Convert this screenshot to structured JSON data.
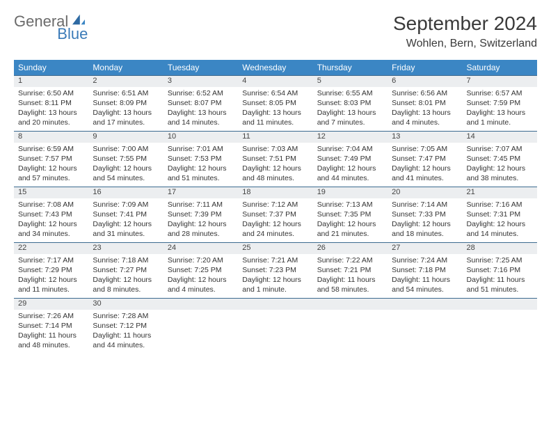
{
  "brand": {
    "part1": "General",
    "part2": "Blue"
  },
  "title": "September 2024",
  "location": "Wohlen, Bern, Switzerland",
  "colors": {
    "header_bg": "#3b86c4",
    "header_text": "#ffffff",
    "daynum_bg": "#eceef0",
    "border": "#3b6a8f",
    "brand_blue": "#3b7bb8",
    "brand_gray": "#6b6b6b",
    "text": "#333333",
    "background": "#ffffff"
  },
  "weekdays": [
    "Sunday",
    "Monday",
    "Tuesday",
    "Wednesday",
    "Thursday",
    "Friday",
    "Saturday"
  ],
  "weeks": [
    [
      {
        "day": "1",
        "sunrise": "Sunrise: 6:50 AM",
        "sunset": "Sunset: 8:11 PM",
        "daylight": "Daylight: 13 hours and 20 minutes."
      },
      {
        "day": "2",
        "sunrise": "Sunrise: 6:51 AM",
        "sunset": "Sunset: 8:09 PM",
        "daylight": "Daylight: 13 hours and 17 minutes."
      },
      {
        "day": "3",
        "sunrise": "Sunrise: 6:52 AM",
        "sunset": "Sunset: 8:07 PM",
        "daylight": "Daylight: 13 hours and 14 minutes."
      },
      {
        "day": "4",
        "sunrise": "Sunrise: 6:54 AM",
        "sunset": "Sunset: 8:05 PM",
        "daylight": "Daylight: 13 hours and 11 minutes."
      },
      {
        "day": "5",
        "sunrise": "Sunrise: 6:55 AM",
        "sunset": "Sunset: 8:03 PM",
        "daylight": "Daylight: 13 hours and 7 minutes."
      },
      {
        "day": "6",
        "sunrise": "Sunrise: 6:56 AM",
        "sunset": "Sunset: 8:01 PM",
        "daylight": "Daylight: 13 hours and 4 minutes."
      },
      {
        "day": "7",
        "sunrise": "Sunrise: 6:57 AM",
        "sunset": "Sunset: 7:59 PM",
        "daylight": "Daylight: 13 hours and 1 minute."
      }
    ],
    [
      {
        "day": "8",
        "sunrise": "Sunrise: 6:59 AM",
        "sunset": "Sunset: 7:57 PM",
        "daylight": "Daylight: 12 hours and 57 minutes."
      },
      {
        "day": "9",
        "sunrise": "Sunrise: 7:00 AM",
        "sunset": "Sunset: 7:55 PM",
        "daylight": "Daylight: 12 hours and 54 minutes."
      },
      {
        "day": "10",
        "sunrise": "Sunrise: 7:01 AM",
        "sunset": "Sunset: 7:53 PM",
        "daylight": "Daylight: 12 hours and 51 minutes."
      },
      {
        "day": "11",
        "sunrise": "Sunrise: 7:03 AM",
        "sunset": "Sunset: 7:51 PM",
        "daylight": "Daylight: 12 hours and 48 minutes."
      },
      {
        "day": "12",
        "sunrise": "Sunrise: 7:04 AM",
        "sunset": "Sunset: 7:49 PM",
        "daylight": "Daylight: 12 hours and 44 minutes."
      },
      {
        "day": "13",
        "sunrise": "Sunrise: 7:05 AM",
        "sunset": "Sunset: 7:47 PM",
        "daylight": "Daylight: 12 hours and 41 minutes."
      },
      {
        "day": "14",
        "sunrise": "Sunrise: 7:07 AM",
        "sunset": "Sunset: 7:45 PM",
        "daylight": "Daylight: 12 hours and 38 minutes."
      }
    ],
    [
      {
        "day": "15",
        "sunrise": "Sunrise: 7:08 AM",
        "sunset": "Sunset: 7:43 PM",
        "daylight": "Daylight: 12 hours and 34 minutes."
      },
      {
        "day": "16",
        "sunrise": "Sunrise: 7:09 AM",
        "sunset": "Sunset: 7:41 PM",
        "daylight": "Daylight: 12 hours and 31 minutes."
      },
      {
        "day": "17",
        "sunrise": "Sunrise: 7:11 AM",
        "sunset": "Sunset: 7:39 PM",
        "daylight": "Daylight: 12 hours and 28 minutes."
      },
      {
        "day": "18",
        "sunrise": "Sunrise: 7:12 AM",
        "sunset": "Sunset: 7:37 PM",
        "daylight": "Daylight: 12 hours and 24 minutes."
      },
      {
        "day": "19",
        "sunrise": "Sunrise: 7:13 AM",
        "sunset": "Sunset: 7:35 PM",
        "daylight": "Daylight: 12 hours and 21 minutes."
      },
      {
        "day": "20",
        "sunrise": "Sunrise: 7:14 AM",
        "sunset": "Sunset: 7:33 PM",
        "daylight": "Daylight: 12 hours and 18 minutes."
      },
      {
        "day": "21",
        "sunrise": "Sunrise: 7:16 AM",
        "sunset": "Sunset: 7:31 PM",
        "daylight": "Daylight: 12 hours and 14 minutes."
      }
    ],
    [
      {
        "day": "22",
        "sunrise": "Sunrise: 7:17 AM",
        "sunset": "Sunset: 7:29 PM",
        "daylight": "Daylight: 12 hours and 11 minutes."
      },
      {
        "day": "23",
        "sunrise": "Sunrise: 7:18 AM",
        "sunset": "Sunset: 7:27 PM",
        "daylight": "Daylight: 12 hours and 8 minutes."
      },
      {
        "day": "24",
        "sunrise": "Sunrise: 7:20 AM",
        "sunset": "Sunset: 7:25 PM",
        "daylight": "Daylight: 12 hours and 4 minutes."
      },
      {
        "day": "25",
        "sunrise": "Sunrise: 7:21 AM",
        "sunset": "Sunset: 7:23 PM",
        "daylight": "Daylight: 12 hours and 1 minute."
      },
      {
        "day": "26",
        "sunrise": "Sunrise: 7:22 AM",
        "sunset": "Sunset: 7:21 PM",
        "daylight": "Daylight: 11 hours and 58 minutes."
      },
      {
        "day": "27",
        "sunrise": "Sunrise: 7:24 AM",
        "sunset": "Sunset: 7:18 PM",
        "daylight": "Daylight: 11 hours and 54 minutes."
      },
      {
        "day": "28",
        "sunrise": "Sunrise: 7:25 AM",
        "sunset": "Sunset: 7:16 PM",
        "daylight": "Daylight: 11 hours and 51 minutes."
      }
    ],
    [
      {
        "day": "29",
        "sunrise": "Sunrise: 7:26 AM",
        "sunset": "Sunset: 7:14 PM",
        "daylight": "Daylight: 11 hours and 48 minutes."
      },
      {
        "day": "30",
        "sunrise": "Sunrise: 7:28 AM",
        "sunset": "Sunset: 7:12 PM",
        "daylight": "Daylight: 11 hours and 44 minutes."
      },
      null,
      null,
      null,
      null,
      null
    ]
  ]
}
